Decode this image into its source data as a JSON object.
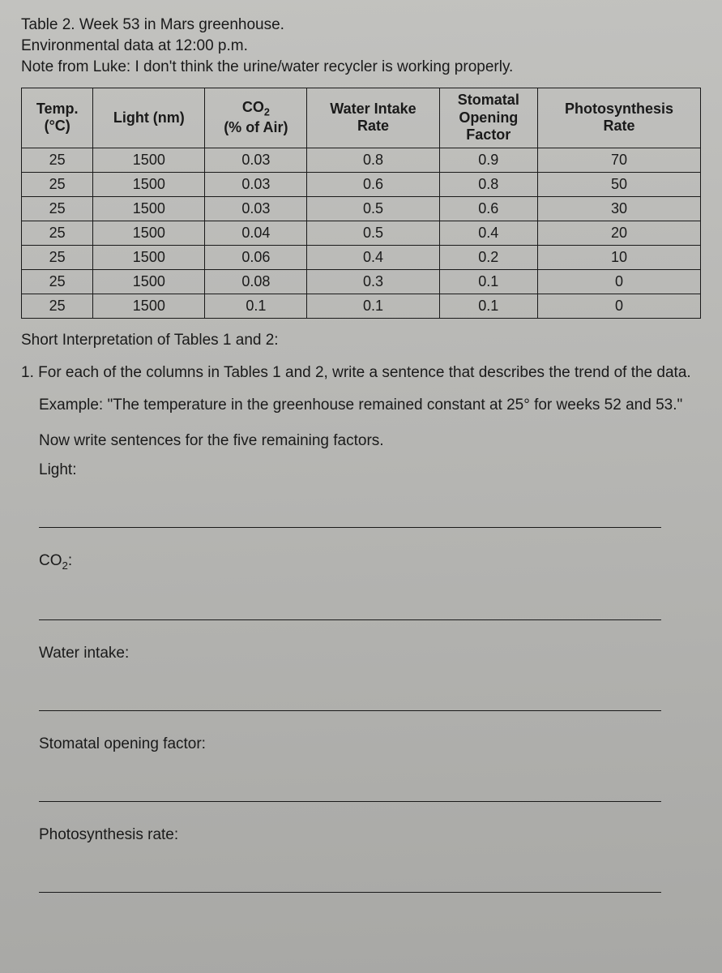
{
  "header": {
    "table_title": "Table 2. Week 53 in Mars greenhouse.",
    "subtitle": "Environmental data at 12:00 p.m.",
    "note": "Note from Luke: I don't think the urine/water recycler is working properly."
  },
  "table": {
    "columns": [
      "Temp.\n(°C)",
      "Light (nm)",
      "CO₂\n(% of Air)",
      "Water Intake\nRate",
      "Stomatal\nOpening\nFactor",
      "Photosynthesis\nRate"
    ],
    "rows": [
      [
        "25",
        "1500",
        "0.03",
        "0.8",
        "0.9",
        "70"
      ],
      [
        "25",
        "1500",
        "0.03",
        "0.6",
        "0.8",
        "50"
      ],
      [
        "25",
        "1500",
        "0.03",
        "0.5",
        "0.6",
        "30"
      ],
      [
        "25",
        "1500",
        "0.04",
        "0.5",
        "0.4",
        "20"
      ],
      [
        "25",
        "1500",
        "0.06",
        "0.4",
        "0.2",
        "10"
      ],
      [
        "25",
        "1500",
        "0.08",
        "0.3",
        "0.1",
        "0"
      ],
      [
        "25",
        "1500",
        "0.1",
        "0.1",
        "0.1",
        "0"
      ]
    ],
    "border_color": "#1a1a1a",
    "header_fontsize": 18,
    "cell_fontsize": 18
  },
  "interp_title": "Short Interpretation of Tables 1 and 2:",
  "question": {
    "number": "1.",
    "text": "For each of the columns in Tables 1 and 2, write a sentence that describes the trend of the data."
  },
  "example": "Example: \"The temperature in the greenhouse remained constant at 25° for weeks 52 and 53.\"",
  "instruction": "Now write sentences for the five remaining factors.",
  "factors": {
    "light": "Light:",
    "co2": "CO₂:",
    "water": "Water intake:",
    "stomatal": "Stomatal opening factor:",
    "photo": "Photosynthesis rate:"
  },
  "colors": {
    "text": "#1a1a1a",
    "background_top": "#c2c2bf",
    "background_bottom": "#a8a8a5"
  }
}
